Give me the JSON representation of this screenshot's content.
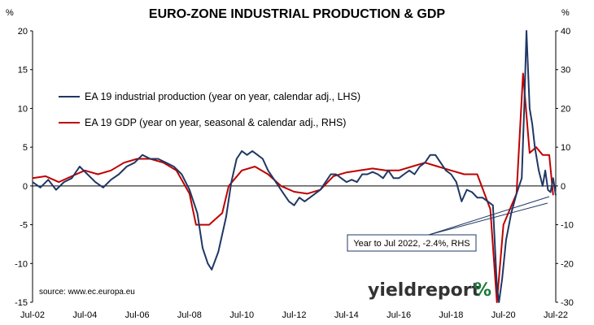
{
  "chart_data": {
    "type": "line",
    "title": "EURO-ZONE INDUSTRIAL PRODUCTION & GDP",
    "left_axis_unit": "%",
    "right_axis_unit": "%",
    "x_tick_labels": [
      "Jul-02",
      "Jul-04",
      "Jul-06",
      "Jul-08",
      "Jul-10",
      "Jul-12",
      "Jul-14",
      "Jul-16",
      "Jul-18",
      "Jul-20",
      "Jul-22"
    ],
    "x_range": [
      2002.5,
      2022.5
    ],
    "y_left": {
      "range": [
        -15,
        20
      ],
      "ticks": [
        -15,
        -10,
        -5,
        0,
        5,
        10,
        15,
        20
      ]
    },
    "y_right": {
      "range": [
        -30,
        40
      ],
      "ticks": [
        -30,
        -20,
        -10,
        0,
        10,
        20,
        30,
        40
      ]
    },
    "source": "source: www.ec.europa.eu",
    "annotation": "Year to Jul 2022, -2.4%, RHS",
    "brand": {
      "text_main": "yieldreport",
      "text_mark": "%"
    },
    "colors": {
      "ip": "#1f3864",
      "gdp": "#c00000",
      "axis": "#000000"
    },
    "series": [
      {
        "name": "EA 19 industrial production (year on year, calendar adj., LHS)",
        "axis": "left",
        "points": [
          [
            2002.5,
            0.5
          ],
          [
            2002.8,
            -0.2
          ],
          [
            2003.1,
            0.8
          ],
          [
            2003.4,
            -0.5
          ],
          [
            2003.7,
            0.5
          ],
          [
            2004.0,
            1.0
          ],
          [
            2004.3,
            2.5
          ],
          [
            2004.6,
            1.5
          ],
          [
            2004.9,
            0.5
          ],
          [
            2005.2,
            -0.2
          ],
          [
            2005.5,
            0.8
          ],
          [
            2005.8,
            1.5
          ],
          [
            2006.1,
            2.5
          ],
          [
            2006.4,
            3.0
          ],
          [
            2006.7,
            4.0
          ],
          [
            2007.0,
            3.5
          ],
          [
            2007.3,
            3.5
          ],
          [
            2007.6,
            3.0
          ],
          [
            2007.9,
            2.5
          ],
          [
            2008.2,
            1.5
          ],
          [
            2008.5,
            -0.5
          ],
          [
            2008.8,
            -3.5
          ],
          [
            2009.0,
            -8.0
          ],
          [
            2009.2,
            -10.0
          ],
          [
            2009.35,
            -10.8
          ],
          [
            2009.6,
            -8.5
          ],
          [
            2009.9,
            -4.0
          ],
          [
            2010.1,
            0.5
          ],
          [
            2010.3,
            3.5
          ],
          [
            2010.5,
            4.5
          ],
          [
            2010.7,
            4.0
          ],
          [
            2010.9,
            4.5
          ],
          [
            2011.1,
            4.0
          ],
          [
            2011.3,
            3.5
          ],
          [
            2011.5,
            2.0
          ],
          [
            2011.7,
            1.0
          ],
          [
            2011.9,
            0.0
          ],
          [
            2012.1,
            -1.0
          ],
          [
            2012.3,
            -2.0
          ],
          [
            2012.5,
            -2.5
          ],
          [
            2012.7,
            -1.5
          ],
          [
            2012.9,
            -2.0
          ],
          [
            2013.1,
            -1.5
          ],
          [
            2013.3,
            -1.0
          ],
          [
            2013.5,
            -0.5
          ],
          [
            2013.7,
            0.5
          ],
          [
            2013.9,
            1.5
          ],
          [
            2014.1,
            1.5
          ],
          [
            2014.3,
            1.0
          ],
          [
            2014.5,
            0.5
          ],
          [
            2014.7,
            0.8
          ],
          [
            2014.9,
            0.5
          ],
          [
            2015.1,
            1.5
          ],
          [
            2015.3,
            1.5
          ],
          [
            2015.5,
            1.8
          ],
          [
            2015.7,
            1.5
          ],
          [
            2015.9,
            1.0
          ],
          [
            2016.1,
            2.0
          ],
          [
            2016.3,
            1.0
          ],
          [
            2016.5,
            1.0
          ],
          [
            2016.7,
            1.5
          ],
          [
            2016.9,
            2.0
          ],
          [
            2017.1,
            1.5
          ],
          [
            2017.3,
            2.5
          ],
          [
            2017.5,
            3.0
          ],
          [
            2017.7,
            4.0
          ],
          [
            2017.9,
            4.0
          ],
          [
            2018.1,
            3.0
          ],
          [
            2018.3,
            2.0
          ],
          [
            2018.5,
            1.5
          ],
          [
            2018.7,
            0.5
          ],
          [
            2018.9,
            -2.0
          ],
          [
            2019.1,
            -0.5
          ],
          [
            2019.3,
            -0.8
          ],
          [
            2019.5,
            -1.5
          ],
          [
            2019.7,
            -1.5
          ],
          [
            2019.9,
            -2.0
          ],
          [
            2020.1,
            -2.5
          ],
          [
            2020.25,
            -13.0
          ],
          [
            2020.33,
            -15.0
          ],
          [
            2020.45,
            -12.0
          ],
          [
            2020.6,
            -7.0
          ],
          [
            2020.8,
            -3.5
          ],
          [
            2021.0,
            -1.0
          ],
          [
            2021.2,
            1.0
          ],
          [
            2021.3,
            10.5
          ],
          [
            2021.38,
            20.0
          ],
          [
            2021.5,
            10.0
          ],
          [
            2021.6,
            8.0
          ],
          [
            2021.7,
            5.0
          ],
          [
            2021.85,
            2.0
          ],
          [
            2022.0,
            0.0
          ],
          [
            2022.1,
            2.0
          ],
          [
            2022.2,
            -0.5
          ],
          [
            2022.3,
            -0.8
          ],
          [
            2022.4,
            1.0
          ],
          [
            2022.5,
            -1.2
          ]
        ]
      },
      {
        "name": "EA 19 GDP (year on year, seasonal & calendar adj., RHS)",
        "axis": "right",
        "points": [
          [
            2002.5,
            2.0
          ],
          [
            2003.0,
            2.5
          ],
          [
            2003.5,
            1.0
          ],
          [
            2004.0,
            2.5
          ],
          [
            2004.5,
            4.0
          ],
          [
            2005.0,
            3.0
          ],
          [
            2005.5,
            4.0
          ],
          [
            2006.0,
            6.0
          ],
          [
            2006.5,
            7.0
          ],
          [
            2007.0,
            7.0
          ],
          [
            2007.5,
            6.0
          ],
          [
            2008.0,
            4.0
          ],
          [
            2008.5,
            -2.0
          ],
          [
            2008.75,
            -10.0
          ],
          [
            2009.25,
            -10.0
          ],
          [
            2009.75,
            -7.0
          ],
          [
            2010.0,
            0.0
          ],
          [
            2010.5,
            4.0
          ],
          [
            2011.0,
            5.0
          ],
          [
            2011.5,
            3.0
          ],
          [
            2012.0,
            0.0
          ],
          [
            2012.5,
            -1.5
          ],
          [
            2013.0,
            -2.0
          ],
          [
            2013.5,
            -1.0
          ],
          [
            2014.0,
            2.5
          ],
          [
            2014.5,
            3.5
          ],
          [
            2015.0,
            4.0
          ],
          [
            2015.5,
            4.5
          ],
          [
            2016.0,
            4.0
          ],
          [
            2016.5,
            4.0
          ],
          [
            2017.0,
            5.0
          ],
          [
            2017.5,
            6.0
          ],
          [
            2018.0,
            5.0
          ],
          [
            2018.5,
            4.0
          ],
          [
            2019.0,
            3.0
          ],
          [
            2019.5,
            3.0
          ],
          [
            2020.0,
            -6.0
          ],
          [
            2020.25,
            -30.0
          ],
          [
            2020.5,
            -10.0
          ],
          [
            2020.75,
            -6.0
          ],
          [
            2021.0,
            -2.0
          ],
          [
            2021.25,
            29.0
          ],
          [
            2021.5,
            8.5
          ],
          [
            2021.75,
            10.0
          ],
          [
            2022.0,
            8.0
          ],
          [
            2022.25,
            8.0
          ],
          [
            2022.4,
            -2.4
          ]
        ]
      }
    ]
  }
}
